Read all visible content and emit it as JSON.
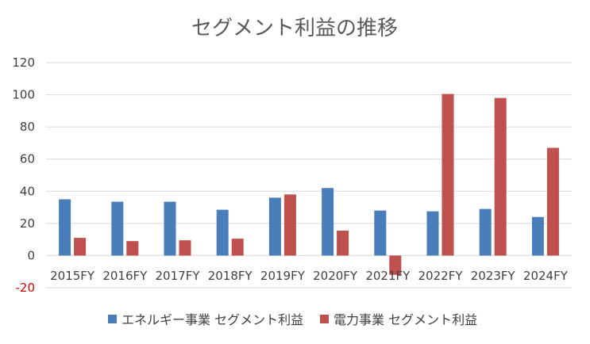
{
  "chart_data": {
    "type": "bar",
    "title": "セグメント利益の推移",
    "categories": [
      "2015FY",
      "2016FY",
      "2017FY",
      "2018FY",
      "2019FY",
      "2020FY",
      "2021FY",
      "2022FY",
      "2023FY",
      "2024FY"
    ],
    "series": [
      {
        "name": "エネルギー事業 セグメント利益",
        "color": "#4a7ebb",
        "values": [
          35,
          33.5,
          33.5,
          28.5,
          36,
          42,
          28,
          27.5,
          29,
          24
        ]
      },
      {
        "name": "電力事業 セグメント利益",
        "color": "#c0504d",
        "values": [
          11,
          9,
          9.5,
          10.5,
          38,
          15.5,
          -12,
          100.5,
          98,
          67
        ]
      }
    ],
    "yticks": [
      "-20",
      "0",
      "20",
      "40",
      "60",
      "80",
      "100",
      "120"
    ],
    "ylim": [
      -20,
      120
    ],
    "grid": true,
    "legend_position": "bottom",
    "negative_tick_color": "#e00000"
  }
}
